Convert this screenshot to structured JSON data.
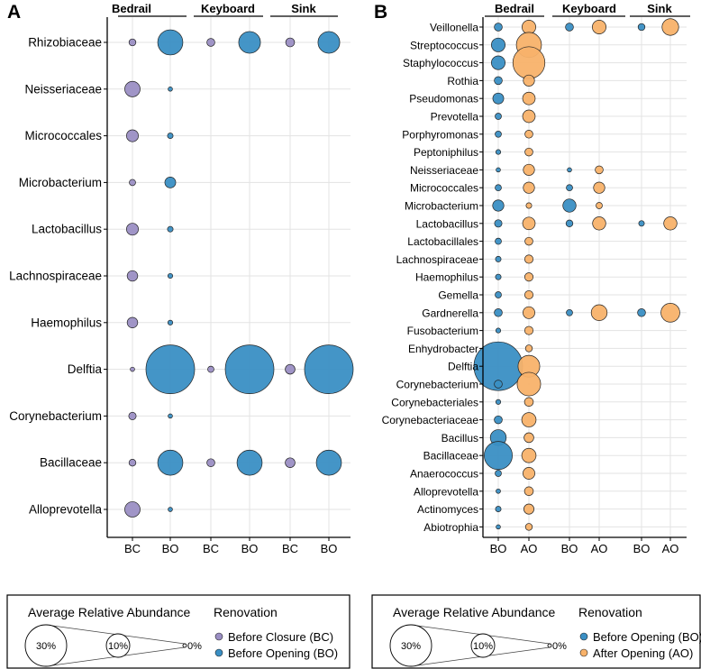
{
  "chart_data": [
    {
      "panel": "A",
      "type": "bubble",
      "size_unit": "average relative abundance (%)",
      "groups": [
        "Bedrail",
        "Keyboard",
        "Sink"
      ],
      "columns": [
        {
          "group": "Bedrail",
          "label": "BC"
        },
        {
          "group": "Bedrail",
          "label": "BO"
        },
        {
          "group": "Keyboard",
          "label": "BC"
        },
        {
          "group": "Keyboard",
          "label": "BO"
        },
        {
          "group": "Sink",
          "label": "BC"
        },
        {
          "group": "Sink",
          "label": "BO"
        }
      ],
      "taxa": [
        "Rhizobiaceae",
        "Neisseriaceae",
        "Micrococcales",
        "Microbacterium",
        "Lactobacillus",
        "Lachnospiraceae",
        "Haemophilus",
        "Delftia",
        "Corynebacterium",
        "Bacillaceae",
        "Alloprevotella"
      ],
      "values": [
        [
          0.6,
          8,
          0.8,
          6,
          1.0,
          6
        ],
        [
          3,
          0.2,
          0,
          0,
          0,
          0
        ],
        [
          1.8,
          0.4,
          0,
          0,
          0,
          0
        ],
        [
          0.5,
          1.5,
          0,
          0,
          0,
          0
        ],
        [
          1.8,
          0.4,
          0,
          0,
          0,
          0
        ],
        [
          1.4,
          0.3,
          0,
          0,
          0,
          0
        ],
        [
          1.4,
          0.3,
          0,
          0,
          0,
          0
        ],
        [
          0.2,
          30,
          0.5,
          30,
          1.2,
          30
        ],
        [
          0.7,
          0.2,
          0,
          0,
          0,
          0
        ],
        [
          0.6,
          8,
          0.8,
          8,
          1.2,
          8
        ],
        [
          3,
          0.2,
          0,
          0,
          0,
          0
        ]
      ]
    },
    {
      "panel": "B",
      "type": "bubble",
      "size_unit": "average relative abundance (%)",
      "groups": [
        "Bedrail",
        "Keyboard",
        "Sink"
      ],
      "columns": [
        {
          "group": "Bedrail",
          "label": "BO"
        },
        {
          "group": "Bedrail",
          "label": "AO"
        },
        {
          "group": "Keyboard",
          "label": "BO"
        },
        {
          "group": "Keyboard",
          "label": "AO"
        },
        {
          "group": "Sink",
          "label": "BO"
        },
        {
          "group": "Sink",
          "label": "AO"
        }
      ],
      "taxa": [
        "Veillonella",
        "Streptococcus",
        "Staphylococcus",
        "Rothia",
        "Pseudomonas",
        "Prevotella",
        "Porphyromonas",
        "Peptoniphilus",
        "Neisseriaceae",
        "Micrococcales",
        "Microbacterium",
        "Lactobacillus",
        "Lactobacillales",
        "Lachnospiraceae",
        "Haemophilus",
        "Gemella",
        "Gardnerella",
        "Fusobacterium",
        "Enhydrobacter",
        "Delftia",
        "Corynebacterium",
        "Corynebacteriales",
        "Corynebacteriaceae",
        "Bacillus",
        "Bacillaceae",
        "Anaerococcus",
        "Alloprevotella",
        "Actinomyces",
        "Abiotrophia"
      ],
      "values": [
        [
          0.8,
          2.4,
          0.8,
          2.4,
          0.6,
          3.5
        ],
        [
          2.4,
          8,
          0,
          0,
          0,
          0
        ],
        [
          2.4,
          13,
          0,
          0,
          0,
          0
        ],
        [
          0.8,
          1.6,
          0,
          0,
          0,
          0
        ],
        [
          1.5,
          2.0,
          0,
          0,
          0,
          0
        ],
        [
          0.5,
          2.0,
          0,
          0,
          0,
          0
        ],
        [
          0.5,
          0.8,
          0,
          0,
          0,
          0
        ],
        [
          0.3,
          0.8,
          0,
          0,
          0,
          0
        ],
        [
          0.2,
          1.6,
          0.2,
          0.8,
          0,
          0
        ],
        [
          0.5,
          1.6,
          0.5,
          1.6,
          0,
          0
        ],
        [
          1.6,
          0.4,
          2.2,
          0.5,
          0,
          0
        ],
        [
          0.7,
          2.0,
          0.6,
          2.2,
          0.4,
          2.2
        ],
        [
          0.5,
          0.8,
          0,
          0,
          0,
          0
        ],
        [
          0.4,
          0.9,
          0,
          0,
          0,
          0
        ],
        [
          0.4,
          0.9,
          0,
          0,
          0,
          0
        ],
        [
          0.5,
          0.9,
          0,
          0,
          0,
          0
        ],
        [
          0.8,
          1.8,
          0.5,
          3.2,
          0.8,
          4.5
        ],
        [
          0.3,
          0.9,
          0,
          0,
          0,
          0
        ],
        [
          0,
          0.6,
          0,
          0,
          0,
          0
        ],
        [
          30,
          6,
          0,
          0,
          0,
          0
        ],
        [
          0.8,
          7,
          0,
          0,
          0,
          0
        ],
        [
          0.3,
          1.0,
          0,
          0,
          0,
          0
        ],
        [
          0.8,
          2.6,
          0,
          0,
          0,
          0
        ],
        [
          3.2,
          1.2,
          0,
          0,
          0,
          0
        ],
        [
          10,
          2.6,
          0,
          0,
          0,
          0
        ],
        [
          0.5,
          1.8,
          0,
          0,
          0,
          0
        ],
        [
          0.25,
          1.0,
          0,
          0,
          0,
          0
        ],
        [
          0.4,
          1.3,
          0,
          0,
          0,
          0
        ],
        [
          0.2,
          0.6,
          0,
          0,
          0,
          0
        ]
      ]
    }
  ],
  "legends": [
    {
      "size_title": "Average Relative Abundance",
      "size_labels": [
        "30%",
        "10%",
        "0%"
      ],
      "color_title": "Renovation",
      "entries": [
        {
          "label": "Before Closure (BC)",
          "color": "#9b8fc4"
        },
        {
          "label": "Before Opening (BO)",
          "color": "#3a8fc4"
        }
      ]
    },
    {
      "size_title": "Average Relative Abundance",
      "size_labels": [
        "30%",
        "10%",
        "0%"
      ],
      "color_title": "Renovation",
      "entries": [
        {
          "label": "Before Opening (BO)",
          "color": "#3a8fc4"
        },
        {
          "label": "After Opening (AO)",
          "color": "#f8b26a"
        }
      ]
    }
  ],
  "colors": {
    "BC": "#9b8fc4",
    "BO": "#3a8fc4",
    "AO": "#f8b26a",
    "grid": "#e3e3e3",
    "stroke": "#222222"
  }
}
